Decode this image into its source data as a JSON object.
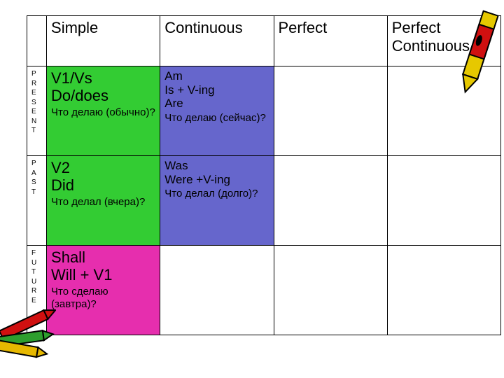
{
  "table": {
    "border_color": "#000000",
    "background": "#ffffff",
    "font_family": "Comic Sans MS",
    "cell_colors": {
      "green": "#33cc33",
      "purple": "#6666cc",
      "magenta": "#e62eae",
      "white": "#ffffff"
    },
    "column_headers": [
      "Simple",
      "Continuous",
      "Perfect",
      "Perfect Continuous"
    ],
    "column_header_fontsize": 22,
    "row_headers": [
      "PRESENT",
      "PAST",
      "FUTURE"
    ],
    "row_header_fontsize": 10,
    "rows": [
      {
        "key": "present",
        "cells": [
          {
            "bg": "green",
            "main": "V1/Vs\nDo/does",
            "sub": "Что делаю (обычно)?"
          },
          {
            "bg": "purple",
            "main": "Am\nIs  + V-ing\nAre",
            "sub": "Что делаю (сейчас)?",
            "main_small": true
          },
          {
            "bg": "white",
            "main": "",
            "sub": ""
          },
          {
            "bg": "white",
            "main": "",
            "sub": ""
          }
        ]
      },
      {
        "key": "past",
        "cells": [
          {
            "bg": "green",
            "main": "V2\nDid",
            "sub": "Что делал (вчера)?"
          },
          {
            "bg": "purple",
            "main": "Was\nWere +V-ing",
            "sub": "Что делал (долго)?",
            "main_small": true
          },
          {
            "bg": "white",
            "main": "",
            "sub": ""
          },
          {
            "bg": "white",
            "main": "",
            "sub": ""
          }
        ]
      },
      {
        "key": "future",
        "cells": [
          {
            "bg": "magenta",
            "main": "Shall\nWill + V1",
            "sub": "Что сделаю (завтра)?"
          },
          {
            "bg": "white",
            "main": "",
            "sub": ""
          },
          {
            "bg": "white",
            "main": "",
            "sub": ""
          },
          {
            "bg": "white",
            "main": "",
            "sub": ""
          }
        ]
      }
    ]
  },
  "decor": {
    "crayon_tr_color": "#e6c800",
    "crayon_tr_wrap": "#d01010",
    "bl_colors": [
      "#d01010",
      "#2e9e2e",
      "#e6b800"
    ]
  }
}
